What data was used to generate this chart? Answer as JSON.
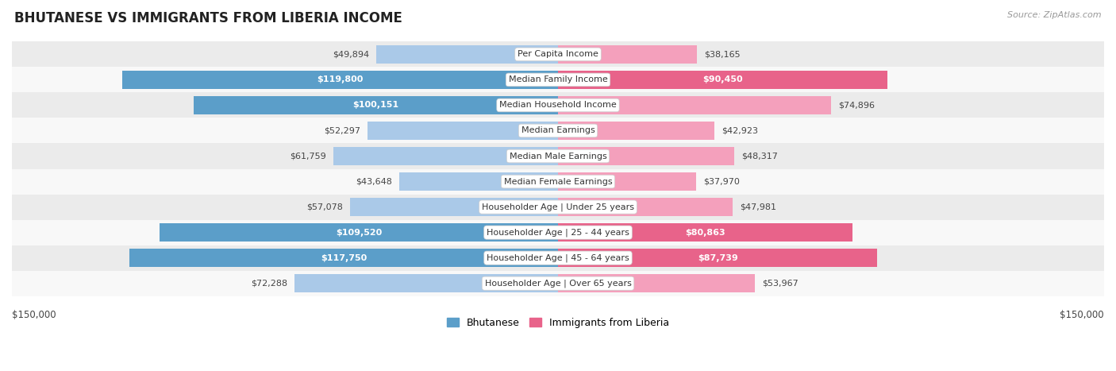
{
  "title": "BHUTANESE VS IMMIGRANTS FROM LIBERIA INCOME",
  "source": "Source: ZipAtlas.com",
  "categories": [
    "Per Capita Income",
    "Median Family Income",
    "Median Household Income",
    "Median Earnings",
    "Median Male Earnings",
    "Median Female Earnings",
    "Householder Age | Under 25 years",
    "Householder Age | 25 - 44 years",
    "Householder Age | 45 - 64 years",
    "Householder Age | Over 65 years"
  ],
  "bhutanese": [
    49894,
    119800,
    100151,
    52297,
    61759,
    43648,
    57078,
    109520,
    117750,
    72288
  ],
  "liberia": [
    38165,
    90450,
    74896,
    42923,
    48317,
    37970,
    47981,
    80863,
    87739,
    53967
  ],
  "max_val": 150000,
  "blue_light": "#aac9e8",
  "blue_dark": "#5b9ec9",
  "pink_light": "#f4a0bc",
  "pink_dark": "#e8638a",
  "bg_color": "#ffffff",
  "row_bg_even": "#ebebeb",
  "row_bg_odd": "#f8f8f8",
  "legend_blue": "Bhutanese",
  "legend_pink": "Immigrants from Liberia",
  "threshold_dark_label": 80000,
  "bar_height": 0.7
}
